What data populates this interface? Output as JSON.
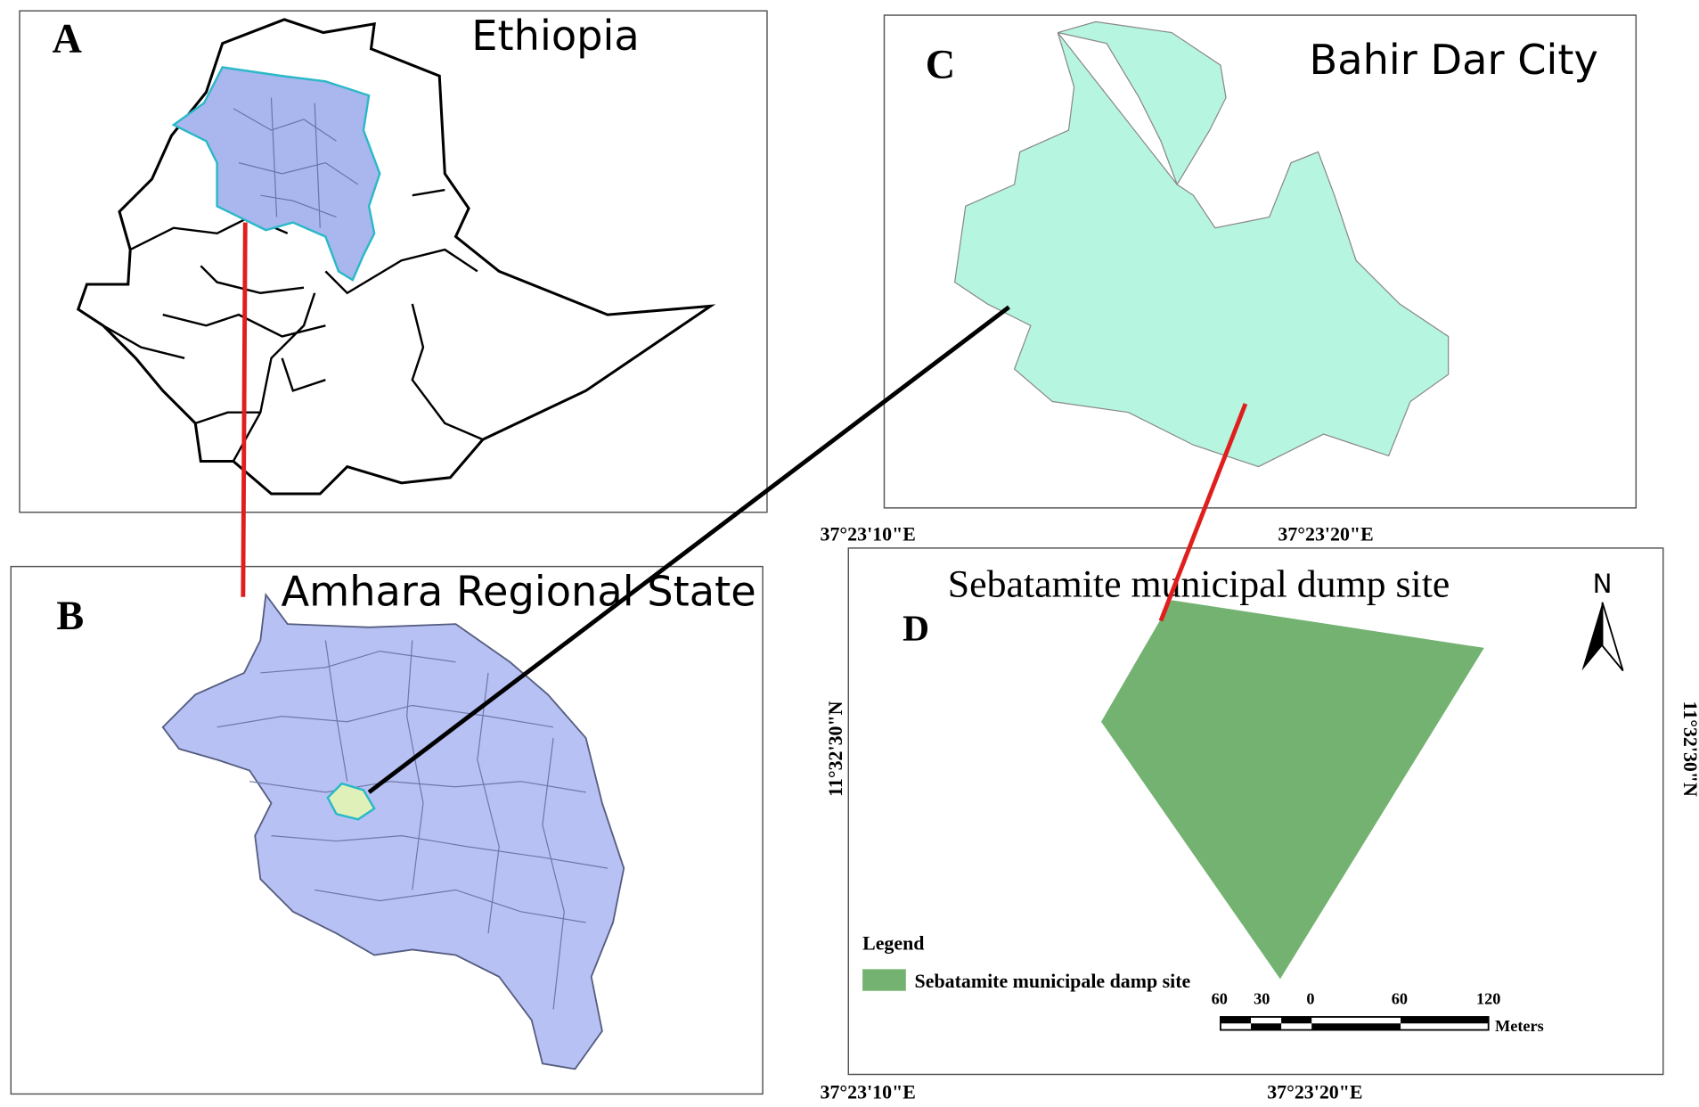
{
  "panels": [
    {
      "label": "A",
      "title": "Ethiopia"
    },
    {
      "label": "B",
      "title": "Amhara Regional State"
    },
    {
      "label": "C",
      "title": "Bahir Dar City"
    },
    {
      "label": "D",
      "title": "Sebatamite municipal dump site"
    }
  ],
  "coordinates": {
    "x_labels_top": [
      "37°23'10\"E",
      "37°23'20\"E"
    ],
    "x_labels_bottom": [
      "37°23'10\"E",
      "37°23'20\"E"
    ],
    "y_labels": [
      "11°32'30\"N",
      "11°32'30\"N"
    ]
  },
  "north_arrow": "N",
  "legend": {
    "title": "Legend",
    "items": [
      "Sebatamite municipale damp site"
    ]
  },
  "scale_bar": {
    "labels": [
      "60",
      "30",
      "0",
      "60",
      "120"
    ],
    "unit": "Meters"
  }
}
